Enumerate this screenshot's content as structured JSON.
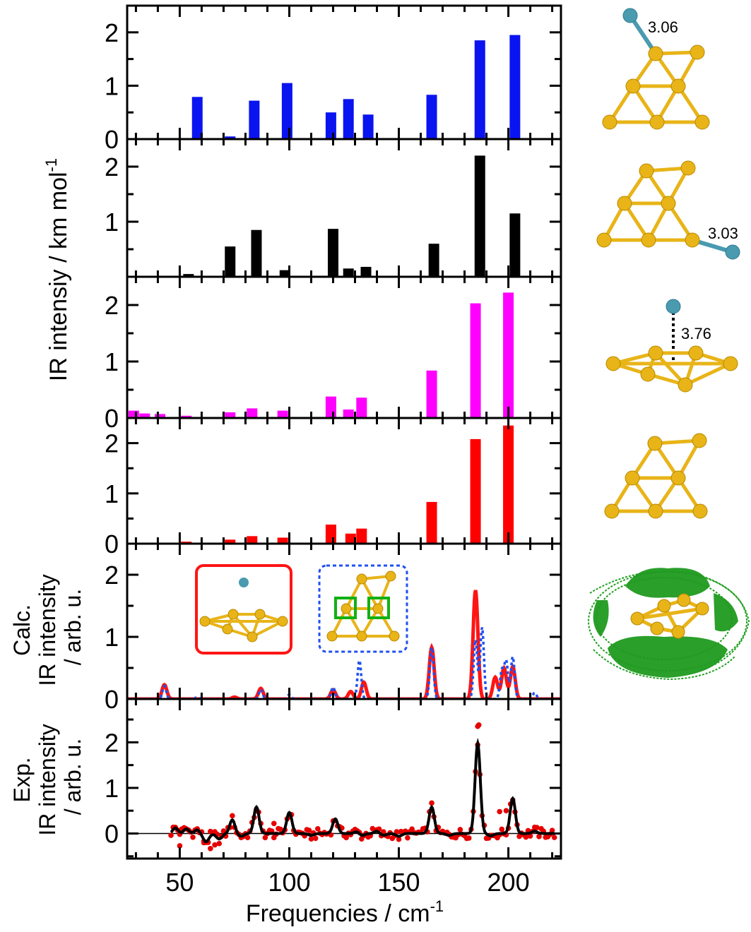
{
  "figure": {
    "x_axis_label": "Frequencies / cm",
    "x_axis_label_sup": "-1",
    "stick_y_label": "IR intensiy / km mol",
    "stick_y_label_sup": "-1",
    "calc_y_label": [
      "Calc.",
      "IR intensity",
      "/ arb. u."
    ],
    "exp_y_label": [
      "Exp.",
      "IR intensity",
      "/ arb. u."
    ],
    "structure_labels": [
      "3.06",
      "3.03",
      "3.76"
    ],
    "colors": {
      "blue_bars": "#0a14f0",
      "black_bars": "#000000",
      "magenta_bars": "#ff00ff",
      "red_bars": "#ff0000",
      "calc_red": "#ff1414",
      "calc_blue_dotted": "#1e50f0",
      "exp_points": "#e60000",
      "exp_fit": "#000000",
      "gold_atoms": "#e8b418",
      "ar_atom": "#4a9ab0",
      "density": "#22a022",
      "inset_red_frame": "#ff1414",
      "inset_blue_frame": "#2050f0",
      "inset_green_square": "#12b012"
    }
  },
  "chart_data": [
    {
      "type": "bar",
      "name": "panel-blue",
      "xlim": [
        26,
        224
      ],
      "ylim": [
        0,
        2.5
      ],
      "yticks": [
        "0",
        "1",
        "2"
      ],
      "ytick_values": [
        0,
        1,
        2
      ],
      "x": [
        58,
        73,
        84,
        99,
        119,
        127,
        136,
        165,
        187,
        203
      ],
      "values": [
        0.79,
        0.05,
        0.72,
        1.05,
        0.5,
        0.75,
        0.46,
        0.83,
        1.85,
        1.95
      ]
    },
    {
      "type": "bar",
      "name": "panel-black",
      "xlim": [
        26,
        224
      ],
      "ylim": [
        0,
        2.5
      ],
      "yticks": [
        "1",
        "2"
      ],
      "ytick_values": [
        1,
        2
      ],
      "x": [
        54,
        73,
        85,
        98,
        120,
        127,
        135,
        166,
        187,
        203
      ],
      "values": [
        0.05,
        0.55,
        0.85,
        0.12,
        0.87,
        0.15,
        0.18,
        0.6,
        2.2,
        1.15
      ]
    },
    {
      "type": "bar",
      "name": "panel-magenta",
      "xlim": [
        26,
        224
      ],
      "ylim": [
        0,
        2.5
      ],
      "yticks": [
        "0",
        "1",
        "2"
      ],
      "ytick_values": [
        0,
        1,
        2
      ],
      "x": [
        29,
        34,
        41,
        53,
        73,
        83,
        97,
        119,
        127,
        133,
        165,
        185,
        200
      ],
      "values": [
        0.13,
        0.08,
        0.07,
        0.04,
        0.1,
        0.17,
        0.13,
        0.38,
        0.15,
        0.36,
        0.84,
        2.03,
        2.22
      ]
    },
    {
      "type": "bar",
      "name": "panel-red",
      "xlim": [
        26,
        224
      ],
      "ylim": [
        0,
        2.5
      ],
      "yticks": [
        "0",
        "1",
        "2"
      ],
      "ytick_values": [
        0,
        1,
        2
      ],
      "x": [
        53,
        73,
        83,
        97,
        119,
        128,
        133,
        165,
        185,
        200
      ],
      "values": [
        0.04,
        0.08,
        0.15,
        0.12,
        0.38,
        0.2,
        0.3,
        0.83,
        2.08,
        2.35
      ]
    },
    {
      "type": "line",
      "name": "panel-calc",
      "xlim": [
        26,
        224
      ],
      "ylim": [
        0,
        2.5
      ],
      "yticks": [
        "0",
        "1",
        "2"
      ],
      "ytick_values": [
        0,
        1,
        2
      ],
      "series": [
        {
          "style": "solid-red",
          "fwhm": 2.6,
          "peaks": [
            [
              43,
              0.23
            ],
            [
              75,
              0.03
            ],
            [
              87,
              0.17
            ],
            [
              120,
              0.15
            ],
            [
              128,
              0.12
            ],
            [
              134,
              0.27
            ],
            [
              165,
              0.83
            ],
            [
              185,
              1.75
            ],
            [
              194,
              0.35
            ],
            [
              198,
              0.5
            ],
            [
              202,
              0.52
            ]
          ]
        },
        {
          "style": "dotted-blue",
          "fwhm": 2.0,
          "peaks": [
            [
              43,
              0.21
            ],
            [
              58,
              0.03
            ],
            [
              87,
              0.15
            ],
            [
              100,
              0.07
            ],
            [
              120,
              0.19
            ],
            [
              132,
              0.62
            ],
            [
              165,
              0.83
            ],
            [
              185,
              0.95
            ],
            [
              188,
              1.15
            ],
            [
              197,
              0.45
            ],
            [
              199,
              0.6
            ],
            [
              202,
              0.68
            ],
            [
              212,
              0.1
            ]
          ]
        }
      ]
    },
    {
      "type": "scatter",
      "name": "panel-exp",
      "xlim": [
        26,
        224
      ],
      "ylim": [
        -0.55,
        2.95
      ],
      "yticks": [
        "0",
        "1",
        "2"
      ],
      "ytick_values": [
        0,
        1,
        2
      ],
      "baseline": 0,
      "fit_peaks": [
        [
          48,
          0.12
        ],
        [
          53,
          0.1
        ],
        [
          58,
          0.08
        ],
        [
          74,
          0.3
        ],
        [
          85,
          0.58
        ],
        [
          100,
          0.46
        ],
        [
          121,
          0.32
        ],
        [
          131,
          0.05
        ],
        [
          140,
          0.05
        ],
        [
          165,
          0.58
        ],
        [
          186,
          1.98
        ],
        [
          202,
          0.77
        ],
        [
          212,
          0.05
        ]
      ],
      "fit_dips": [
        [
          62,
          -0.18
        ],
        [
          68,
          -0.12
        ],
        [
          78,
          -0.06
        ],
        [
          110,
          -0.04
        ],
        [
          133,
          -0.05
        ],
        [
          143,
          -0.04
        ],
        [
          150,
          -0.06
        ],
        [
          173,
          -0.04
        ],
        [
          192,
          -0.05
        ]
      ],
      "fit_fwhm": 2.8,
      "x_range": [
        46,
        221
      ],
      "point_step": 1.0,
      "outliers": [
        [
          186,
          2.35
        ],
        [
          186.5,
          2.38
        ],
        [
          64,
          -0.33
        ],
        [
          61,
          -0.2
        ],
        [
          66,
          -0.25
        ],
        [
          50,
          -0.27
        ],
        [
          93,
          0.22
        ],
        [
          196,
          0.48
        ],
        [
          199,
          0.5
        ]
      ]
    }
  ],
  "x_axis": {
    "ticks": [
      "50",
      "100",
      "150",
      "200"
    ],
    "tick_values": [
      50,
      100,
      150,
      200
    ],
    "minor_tick_step": 10
  }
}
